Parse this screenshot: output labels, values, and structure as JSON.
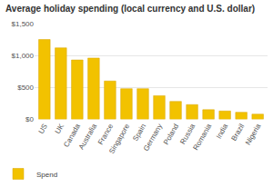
{
  "chart_data": {
    "type": "bar",
    "title": "Average holiday spending (local currency and U.S. dollar)",
    "categories": [
      "US",
      "UK",
      "Canada",
      "Australia",
      "France",
      "Singapore",
      "Spain",
      "Germany",
      "Poland",
      "Russia",
      "Romania",
      "India",
      "Brazil",
      "Nigeria"
    ],
    "series": [
      {
        "name": "Spend",
        "color": "#f2c200",
        "values": [
          1250,
          1120,
          930,
          960,
          600,
          480,
          480,
          370,
          280,
          230,
          150,
          130,
          110,
          80
        ]
      }
    ],
    "ylim": [
      0,
      1500
    ],
    "yticks": [
      {
        "value": 0,
        "label": "$0"
      },
      {
        "value": 500,
        "label": "$500"
      },
      {
        "value": 1000,
        "label": "$1,000"
      },
      {
        "value": 1500,
        "label": "$1,500"
      }
    ],
    "grid": true,
    "legend": "bottom-left"
  }
}
